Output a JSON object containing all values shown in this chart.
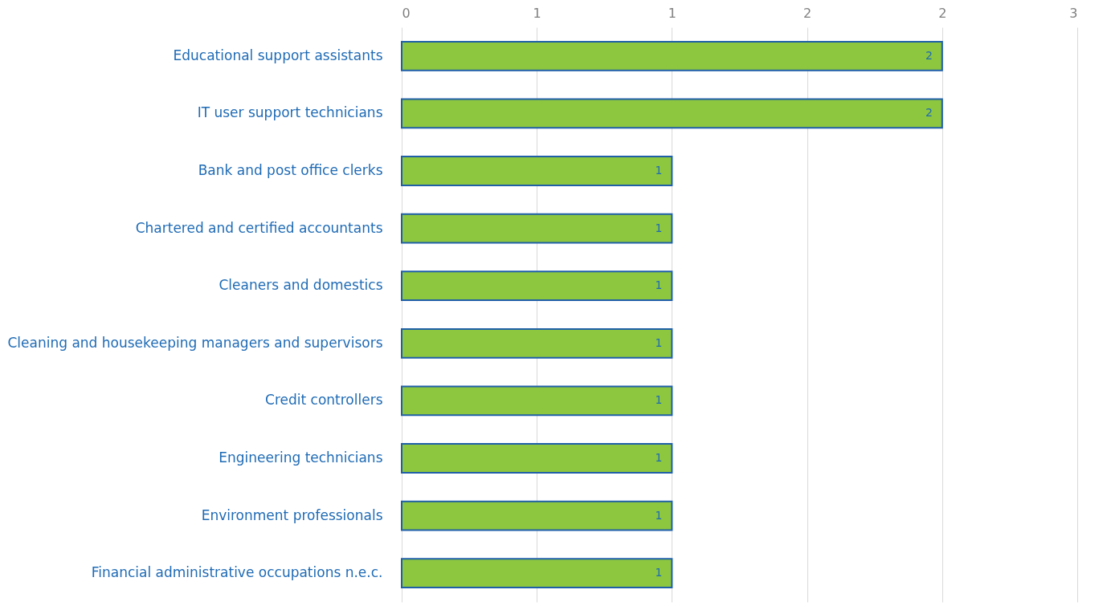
{
  "chart_data": {
    "type": "bar",
    "orientation": "horizontal",
    "categories": [
      "Educational support assistants",
      "IT user support technicians",
      "Bank and post office clerks",
      "Chartered and certified accountants",
      "Cleaners and domestics",
      "Cleaning and housekeeping managers and supervisors",
      "Credit controllers",
      "Engineering technicians",
      "Environment professionals",
      "Financial administrative occupations n.e.c."
    ],
    "values": [
      2,
      2,
      1,
      1,
      1,
      1,
      1,
      1,
      1,
      1
    ],
    "color": "#8dc63f",
    "xlim": [
      0,
      2.5
    ],
    "xticks": [
      0,
      {
        "value": 0.5,
        "label": "1"
      },
      1,
      {
        "value": 1.5,
        "label": "2"
      },
      2,
      {
        "value": 2.5,
        "label": "3"
      }
    ],
    "grid": "x",
    "data_labels": true
  }
}
